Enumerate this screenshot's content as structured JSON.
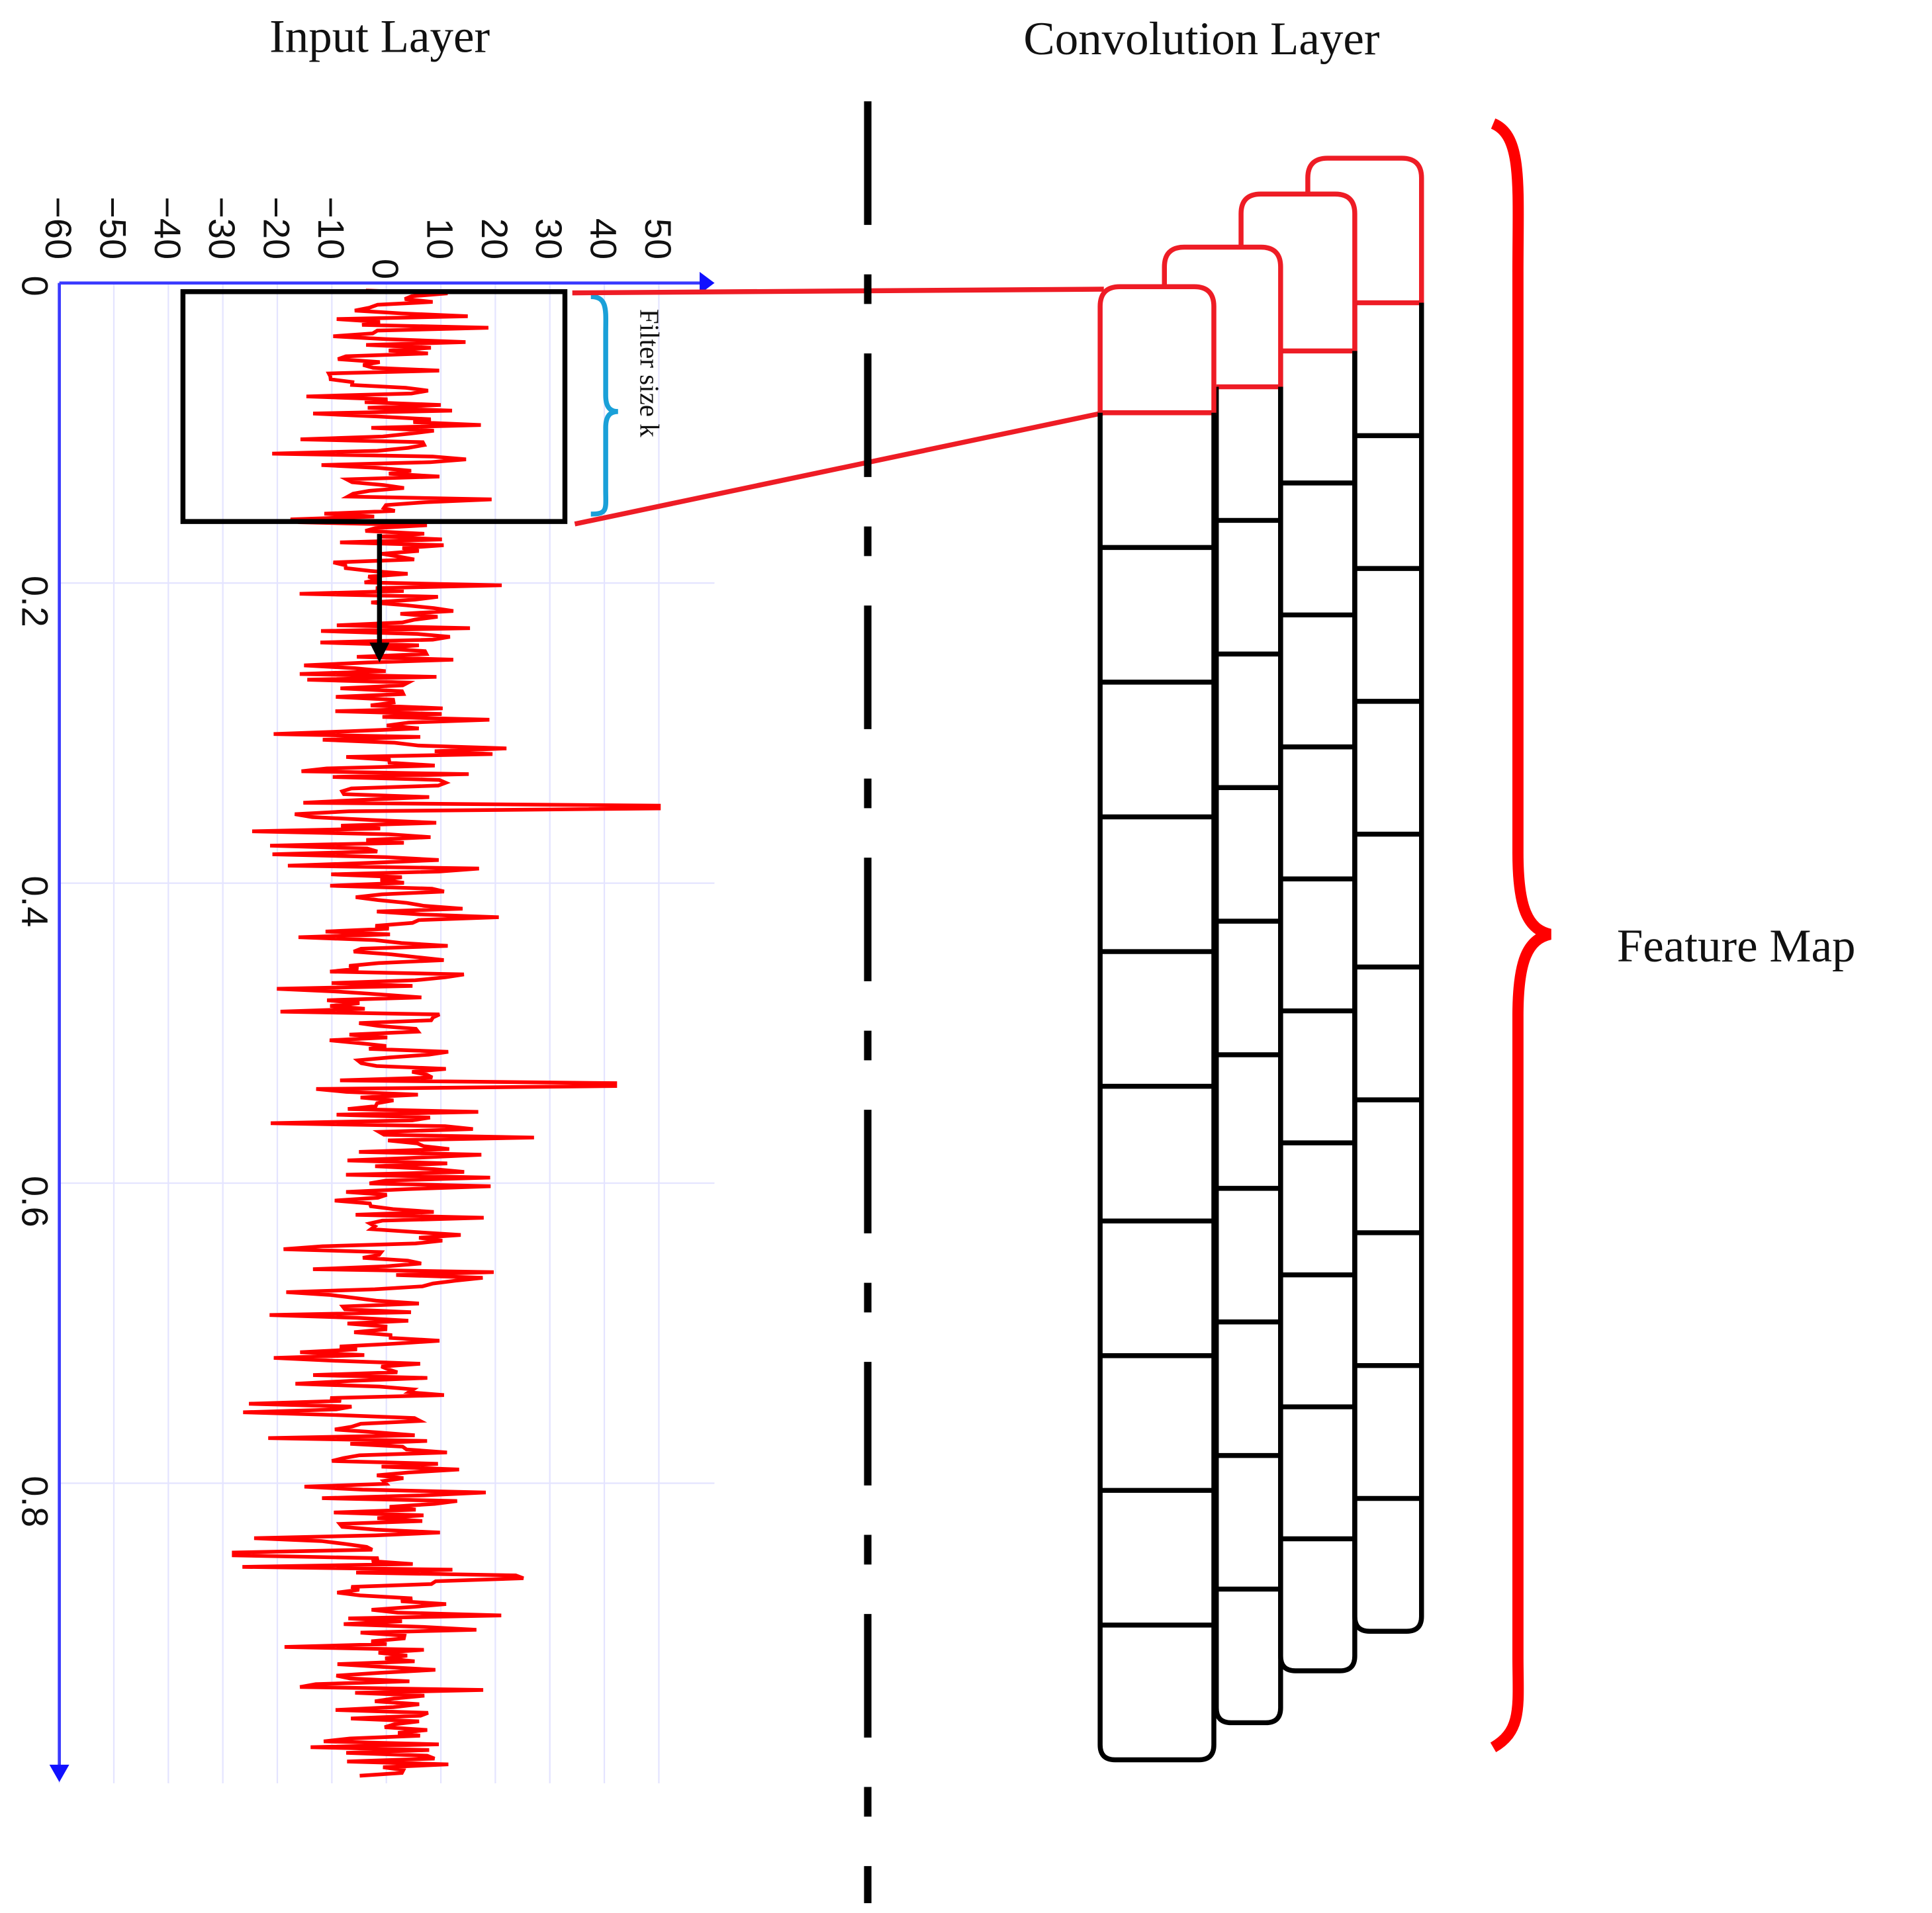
{
  "titles": {
    "input_layer": "Input Layer",
    "convolution_layer": "Convolution Layer",
    "feature_map": "Feature Map",
    "filter_size": "Filter size k"
  },
  "colors": {
    "signal": "#ff0000",
    "axis": "#0000ff",
    "grid": "#e6e6ff",
    "filter_box": "#000000",
    "brace_blue": "#1aa0d8",
    "conv_red": "#ee1c25",
    "conv_black": "#000000"
  },
  "chart_data": {
    "type": "line",
    "title": "Input Layer",
    "orientation": "rotated (amplitude on horizontal axis, time on vertical axis)",
    "x_axis_ticks": [
      "-60",
      "-50",
      "-40",
      "-30",
      "-20",
      "-10",
      "0",
      "10",
      "20",
      "30",
      "40",
      "50"
    ],
    "y_axis_ticks": [
      "0",
      "0.2",
      "0.4",
      "0.6",
      "0.8"
    ],
    "xlim": [
      -60,
      55
    ],
    "ylim": [
      0,
      1.0
    ],
    "grid": true,
    "series": [
      {
        "name": "input signal",
        "description": "noisy signal oscillating around 0, mostly within -25..25 with peaks near 50 (~0.35) and -30 (~0.85)"
      }
    ],
    "annotations": [
      "Filter size k"
    ]
  },
  "convolution": {
    "filters": 4,
    "cells_per_filter": [
      10,
      10,
      10,
      10
    ]
  }
}
